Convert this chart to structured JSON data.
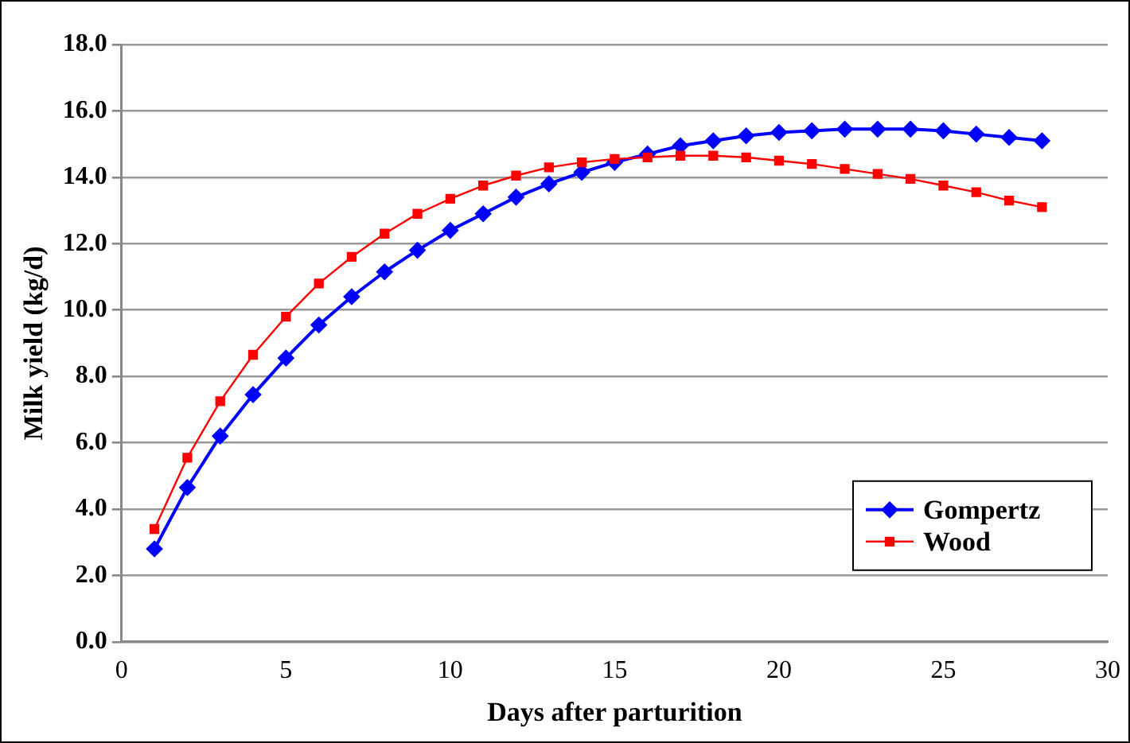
{
  "chart_data": {
    "type": "line",
    "xlabel": "Days after parturition",
    "ylabel": "Milk yield (kg/d)",
    "x": [
      1,
      2,
      3,
      4,
      5,
      6,
      7,
      8,
      9,
      10,
      11,
      12,
      13,
      14,
      15,
      16,
      17,
      18,
      19,
      20,
      21,
      22,
      23,
      24,
      25,
      26,
      27,
      28
    ],
    "xlim": [
      0,
      30
    ],
    "xticks": [
      0,
      5,
      10,
      15,
      20,
      25,
      30
    ],
    "ylim": [
      0,
      18
    ],
    "yticks": [
      {
        "value": 0,
        "label": "0.0"
      },
      {
        "value": 2,
        "label": "2.0"
      },
      {
        "value": 4,
        "label": "4.0"
      },
      {
        "value": 6,
        "label": "6.0"
      },
      {
        "value": 8,
        "label": "8.0"
      },
      {
        "value": 10,
        "label": "10.0"
      },
      {
        "value": 12,
        "label": "12.0"
      },
      {
        "value": 14,
        "label": "14.0"
      },
      {
        "value": 16,
        "label": "16.0"
      },
      {
        "value": 18,
        "label": "18.0"
      }
    ],
    "grid": "y",
    "legend": "bottom right",
    "series": [
      {
        "name": "Gompertz",
        "color": "#0000ff",
        "marker": "diamond",
        "values": [
          2.8,
          4.65,
          6.2,
          7.45,
          8.55,
          9.55,
          10.4,
          11.15,
          11.8,
          12.4,
          12.9,
          13.4,
          13.8,
          14.15,
          14.45,
          14.7,
          14.95,
          15.1,
          15.25,
          15.35,
          15.4,
          15.45,
          15.45,
          15.45,
          15.4,
          15.3,
          15.2,
          15.1
        ]
      },
      {
        "name": "Wood",
        "color": "#ff0000",
        "marker": "square",
        "values": [
          3.4,
          5.55,
          7.25,
          8.65,
          9.8,
          10.8,
          11.6,
          12.3,
          12.9,
          13.35,
          13.75,
          14.05,
          14.3,
          14.45,
          14.55,
          14.6,
          14.65,
          14.65,
          14.6,
          14.5,
          14.4,
          14.25,
          14.1,
          13.95,
          13.75,
          13.55,
          13.3,
          13.1
        ]
      }
    ]
  }
}
